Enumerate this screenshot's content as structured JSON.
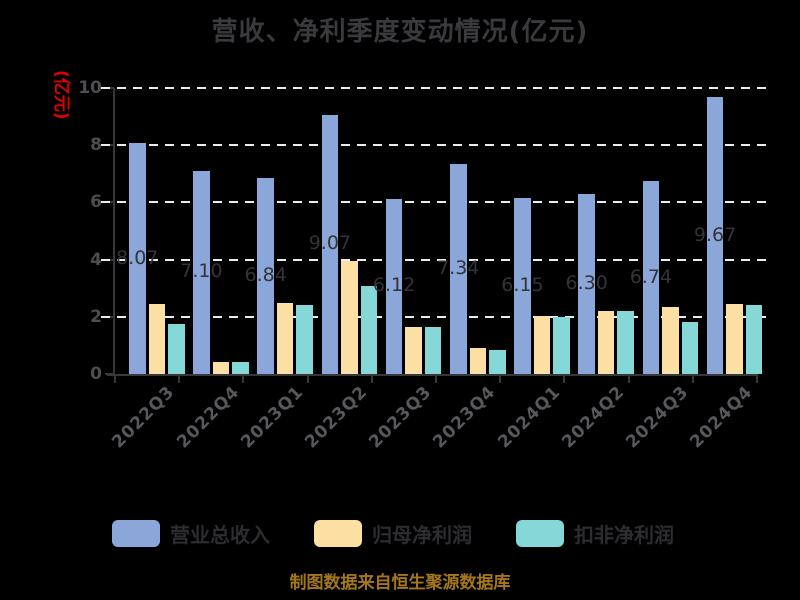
{
  "title": "营收、净利季度变动情况(亿元)",
  "y_axis_label": "(亿元)",
  "footer": "制图数据来自恒生聚源数据库",
  "colors": {
    "background": "#000000",
    "title_text": "#3a3a3e",
    "axis_line": "#38383c",
    "gridline": "#ececec",
    "ytick_text": "#4d4d52",
    "xlabel_text": "#58585c",
    "unit_label": "#e00000",
    "value_label": "#333338",
    "footer_text": "#a5771b",
    "legend_text": "#2d2d31",
    "series_blue": "#8ba7d9",
    "series_yellow": "#fbdfa3",
    "series_teal": "#85d7d8"
  },
  "chart_data": {
    "type": "bar",
    "title": "营收、净利季度变动情况(亿元)",
    "xlabel": "",
    "ylabel": "(亿元)",
    "ylim": [
      0,
      10
    ],
    "yticks": [
      0,
      2,
      4,
      6,
      8,
      10
    ],
    "grid": "horizontal-dashed",
    "legend_position": "bottom",
    "categories": [
      "2022Q3",
      "2022Q4",
      "2023Q1",
      "2023Q2",
      "2023Q3",
      "2023Q4",
      "2024Q1",
      "2024Q2",
      "2024Q3",
      "2024Q4"
    ],
    "series": [
      {
        "name": "营业总收入",
        "color": "#8ba7d9",
        "values": [
          8.07,
          7.1,
          6.84,
          9.07,
          6.12,
          7.34,
          6.15,
          6.3,
          6.74,
          9.67
        ],
        "value_labels": [
          "8.07",
          "7.10",
          "6.84",
          "9.07",
          "6.12",
          "7.34",
          "6.15",
          "6.30",
          "6.74",
          "9.67"
        ]
      },
      {
        "name": "归母净利润",
        "color": "#fbdfa3",
        "values": [
          2.45,
          0.42,
          2.47,
          3.95,
          1.64,
          0.9,
          2.02,
          2.19,
          2.33,
          2.45
        ]
      },
      {
        "name": "扣非净利润",
        "color": "#85d7d8",
        "values": [
          1.76,
          0.42,
          2.43,
          3.08,
          1.64,
          0.84,
          1.98,
          2.19,
          1.83,
          2.4
        ]
      }
    ]
  }
}
